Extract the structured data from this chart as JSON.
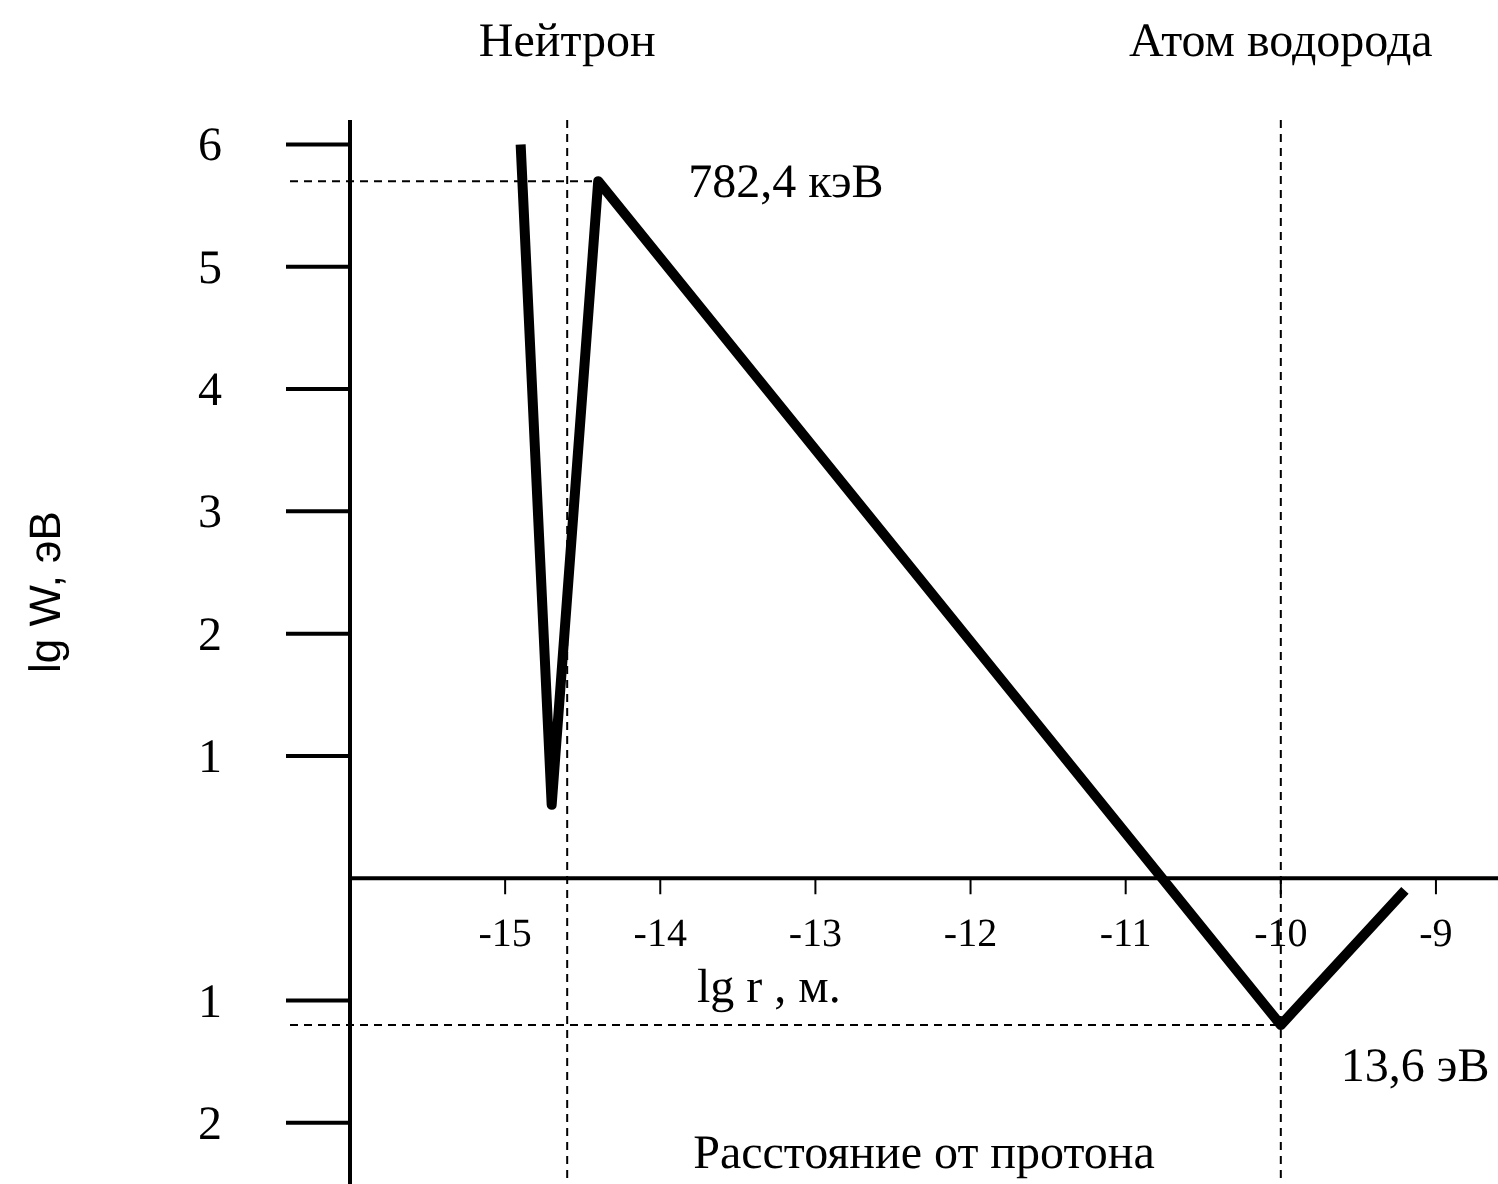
{
  "chart_data": {
    "type": "line",
    "xlabel": "lg r , м.",
    "ylabel": "lg W, эВ",
    "x": [
      -14.9,
      -14.7,
      -14.4,
      -10,
      -9.2
    ],
    "series": [
      {
        "color": "#000000",
        "values": [
          6,
          0.6,
          5.7,
          -1.2,
          -0.1
        ]
      }
    ],
    "xlim": [
      -16,
      -8.6
    ],
    "ylim": [
      -2.5,
      6.2
    ],
    "xticks": [
      -15,
      -14,
      -13,
      -12,
      -11,
      -10,
      -9
    ],
    "yticks": [
      {
        "value": -2,
        "label": "2"
      },
      {
        "value": -1,
        "label": "1"
      },
      1,
      2,
      3,
      4,
      5,
      6
    ],
    "ref_lines": [
      {
        "axis": "x",
        "value": -14.6,
        "label": "Нейтрон",
        "line_style": "dashed"
      },
      {
        "axis": "x",
        "value": -10,
        "label": "Атом водорода",
        "line_style": "dashed"
      },
      {
        "axis": "y",
        "value": 5.7,
        "label": "782,4 кэВ",
        "line_style": "dashed"
      },
      {
        "axis": "y",
        "value": -1.2,
        "label": "13,6 эВ",
        "line_style": "dashed"
      }
    ],
    "annotations": [
      "Расстояние от протона"
    ],
    "marker": "none",
    "line_style": "solid"
  }
}
